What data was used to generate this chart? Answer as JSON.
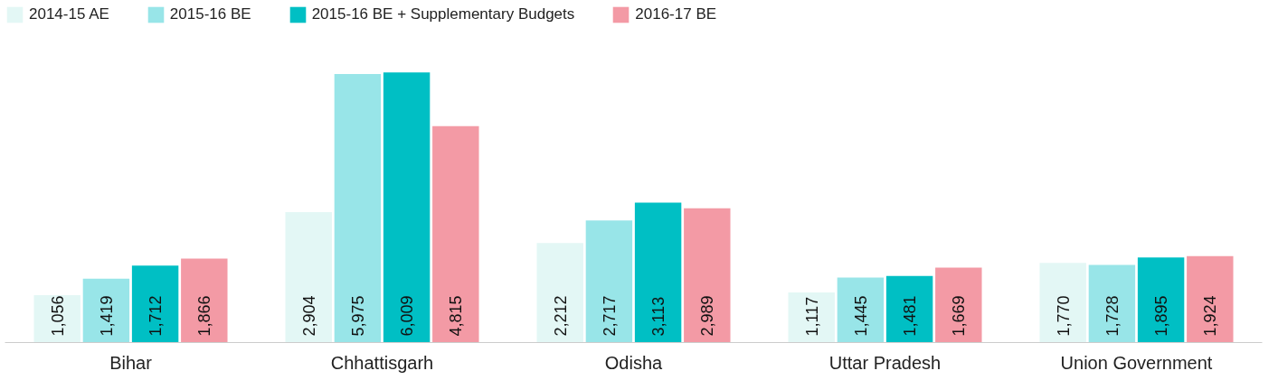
{
  "chart_data": {
    "type": "bar",
    "categories": [
      "Bihar",
      "Chhattisgarh",
      "Odisha",
      "Uttar Pradesh",
      "Union Government"
    ],
    "series": [
      {
        "name": "2014-15 AE",
        "color": "#e3f7f5",
        "values": [
          1056,
          2904,
          2212,
          1117,
          1770
        ],
        "value_labels": [
          "1,056",
          "2,904",
          "2,212",
          "1,117",
          "1,770"
        ]
      },
      {
        "name": "2015-16 BE",
        "color": "#98e5e8",
        "values": [
          1419,
          5975,
          2717,
          1445,
          1728
        ],
        "value_labels": [
          "1,419",
          "5,975",
          "2,717",
          "1,445",
          "1,728"
        ]
      },
      {
        "name": "2015-16 BE + Supplementary Budgets",
        "color": "#00bfc4",
        "values": [
          1712,
          6009,
          3113,
          1481,
          1895
        ],
        "value_labels": [
          "1,712",
          "6,009",
          "3,113",
          "1,481",
          "1,895"
        ]
      },
      {
        "name": "2016-17 BE",
        "color": "#f39aa5",
        "values": [
          1866,
          4815,
          2989,
          1669,
          1924
        ],
        "value_labels": [
          "1,866",
          "4,815",
          "2,989",
          "1,669",
          "1,924"
        ]
      }
    ],
    "legend": "top left",
    "grid": false
  }
}
